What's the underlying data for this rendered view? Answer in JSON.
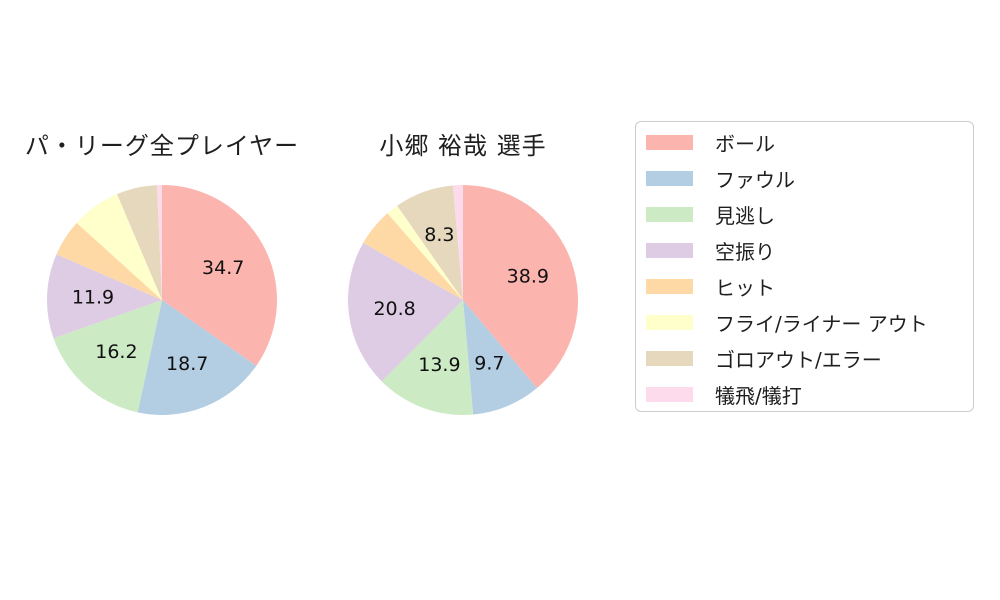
{
  "chart_data": [
    {
      "type": "pie",
      "title": "パ・リーグ全プレイヤー",
      "categories": [
        "ボール",
        "ファウル",
        "見逃し",
        "空振り",
        "ヒット",
        "フライ/ライナー アウト",
        "ゴロアウト/エラー",
        "犠飛/犠打"
      ],
      "values": [
        34.7,
        18.7,
        16.2,
        11.9,
        5.2,
        6.9,
        5.7,
        0.7
      ],
      "value_labels": [
        "34.7",
        "18.7",
        "16.2",
        "11.9",
        "",
        "",
        "",
        ""
      ],
      "colors": [
        "#fbb4ae",
        "#b3cde3",
        "#ccebc5",
        "#decbe4",
        "#fed9a6",
        "#ffffcc",
        "#e5d8bd",
        "#fddaec"
      ],
      "unit": "percent",
      "start_angle": "top",
      "direction": "clockwise",
      "label_radius_fraction": 0.6
    },
    {
      "type": "pie",
      "title": "小郷 裕哉 選手",
      "categories": [
        "ボール",
        "ファウル",
        "見逃し",
        "空振り",
        "ヒット",
        "フライ/ライナー アウト",
        "ゴロアウト/エラー",
        "犠飛/犠打"
      ],
      "values": [
        38.9,
        9.7,
        13.9,
        20.8,
        5.3,
        1.7,
        8.3,
        1.4
      ],
      "value_labels": [
        "38.9",
        "9.7",
        "13.9",
        "20.8",
        "",
        "",
        "8.3",
        ""
      ],
      "colors": [
        "#fbb4ae",
        "#b3cde3",
        "#ccebc5",
        "#decbe4",
        "#fed9a6",
        "#ffffcc",
        "#e5d8bd",
        "#fddaec"
      ],
      "unit": "percent",
      "start_angle": "top",
      "direction": "clockwise",
      "label_radius_fraction": 0.6
    }
  ],
  "legend": {
    "position": "right",
    "entries": [
      {
        "label": "ボール",
        "color": "#fbb4ae"
      },
      {
        "label": "ファウル",
        "color": "#b3cde3"
      },
      {
        "label": "見逃し",
        "color": "#ccebc5"
      },
      {
        "label": "空振り",
        "color": "#decbe4"
      },
      {
        "label": "ヒット",
        "color": "#fed9a6"
      },
      {
        "label": "フライ/ライナー アウト",
        "color": "#ffffcc"
      },
      {
        "label": "ゴロアウト/エラー",
        "color": "#e5d8bd"
      },
      {
        "label": "犠飛/犠打",
        "color": "#fddaec"
      }
    ]
  }
}
